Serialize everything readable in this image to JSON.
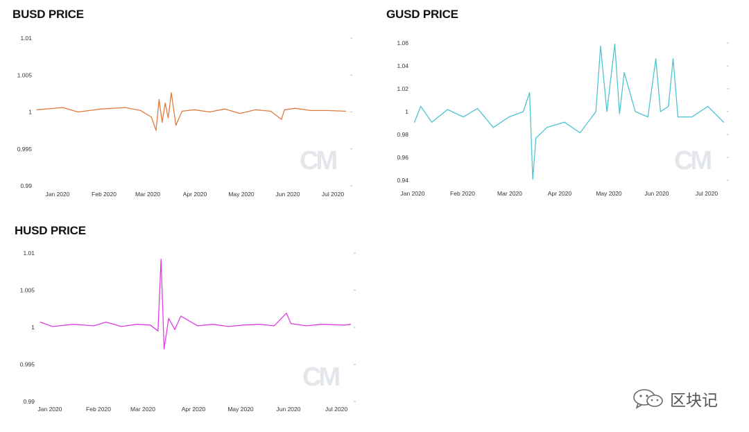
{
  "chart_data": [
    {
      "id": "busd",
      "type": "line",
      "title": "BUSD PRICE",
      "color": "#e07a3c",
      "watermark": "CM",
      "x_ticks": [
        "Jan 2020",
        "Feb 2020",
        "Mar 2020",
        "Apr 2020",
        "May 2020",
        "Jun 2020",
        "Jul 2020"
      ],
      "y_ticks": [
        "1.01",
        "1.005",
        "1",
        "0.995",
        "0.99"
      ],
      "ylim": [
        0.99,
        1.01
      ],
      "x": [
        "2019-12-24",
        "2020-01-10",
        "2020-01-20",
        "2020-02-04",
        "2020-02-20",
        "2020-03-01",
        "2020-03-08",
        "2020-03-11",
        "2020-03-13",
        "2020-03-15",
        "2020-03-17",
        "2020-03-19",
        "2020-03-21",
        "2020-03-24",
        "2020-03-28",
        "2020-04-05",
        "2020-04-15",
        "2020-04-25",
        "2020-05-05",
        "2020-05-15",
        "2020-05-25",
        "2020-06-01",
        "2020-06-03",
        "2020-06-10",
        "2020-06-20",
        "2020-07-01",
        "2020-07-13"
      ],
      "y": [
        1.0003,
        1.0006,
        1.0,
        1.0004,
        1.0006,
        1.0002,
        0.9993,
        0.9975,
        1.0017,
        0.9986,
        1.0012,
        0.9992,
        1.0026,
        0.9982,
        1.0001,
        1.0003,
        1.0,
        1.0004,
        0.9998,
        1.0003,
        1.0001,
        0.999,
        1.0003,
        1.0005,
        1.0002,
        1.0002,
        1.0001
      ]
    },
    {
      "id": "gusd",
      "type": "line",
      "title": "GUSD PRICE",
      "color": "#4ec3d0",
      "watermark": "CM",
      "x_ticks": [
        "Jan 2020",
        "Feb 2020",
        "Mar 2020",
        "Apr 2020",
        "May 2020",
        "Jun 2020",
        "Jul 2020"
      ],
      "y_ticks": [
        "1.06",
        "1.04",
        "1.02",
        "1",
        "0.98",
        "0.96",
        "0.94"
      ],
      "ylim": [
        0.935,
        1.065
      ],
      "x": [
        "2020-01-01",
        "2020-01-05",
        "2020-01-12",
        "2020-01-22",
        "2020-02-01",
        "2020-02-10",
        "2020-02-20",
        "2020-03-01",
        "2020-03-10",
        "2020-03-14",
        "2020-03-16",
        "2020-03-18",
        "2020-03-25",
        "2020-04-05",
        "2020-04-15",
        "2020-04-25",
        "2020-04-28",
        "2020-05-02",
        "2020-05-07",
        "2020-05-10",
        "2020-05-13",
        "2020-05-20",
        "2020-05-28",
        "2020-06-02",
        "2020-06-05",
        "2020-06-10",
        "2020-06-13",
        "2020-06-16",
        "2020-06-25",
        "2020-07-05",
        "2020-07-15"
      ],
      "y": [
        0.99,
        1.005,
        0.99,
        1.002,
        0.995,
        1.003,
        0.985,
        0.995,
        1.0,
        1.018,
        0.936,
        0.975,
        0.985,
        0.99,
        0.98,
        1.0,
        1.062,
        1.0,
        1.064,
        0.998,
        1.037,
        1.0,
        0.995,
        1.05,
        1.0,
        1.005,
        1.05,
        0.995,
        0.995,
        1.005,
        0.99
      ]
    },
    {
      "id": "husd",
      "type": "line",
      "title": "HUSD PRICE",
      "color": "#e03ce3",
      "watermark": "CM",
      "x_ticks": [
        "Jan 2020",
        "Feb 2020",
        "Mar 2020",
        "Apr 2020",
        "May 2020",
        "Jun 2020",
        "Jul 2020"
      ],
      "y_ticks": [
        "1.01",
        "1.005",
        "1",
        "0.995",
        "0.99"
      ],
      "ylim": [
        0.99,
        1.01
      ],
      "x": [
        "2019-12-24",
        "2020-01-01",
        "2020-01-15",
        "2020-01-28",
        "2020-02-05",
        "2020-02-15",
        "2020-02-25",
        "2020-03-05",
        "2020-03-10",
        "2020-03-12",
        "2020-03-14",
        "2020-03-17",
        "2020-03-21",
        "2020-03-25",
        "2020-04-05",
        "2020-04-15",
        "2020-04-25",
        "2020-05-05",
        "2020-05-15",
        "2020-05-25",
        "2020-06-02",
        "2020-06-05",
        "2020-06-15",
        "2020-06-25",
        "2020-07-10",
        "2020-07-14"
      ],
      "y": [
        1.0007,
        1.0001,
        1.0004,
        1.0002,
        1.0007,
        1.0001,
        1.0004,
        1.0003,
        0.9995,
        1.0092,
        0.9971,
        1.0012,
        0.9997,
        1.0015,
        1.0002,
        1.0004,
        1.0001,
        1.0003,
        1.0004,
        1.0002,
        1.0019,
        1.0005,
        1.0002,
        1.0004,
        1.0003,
        1.0004
      ]
    }
  ],
  "brand": {
    "icon": "wechat-icon",
    "text": "区块记"
  }
}
